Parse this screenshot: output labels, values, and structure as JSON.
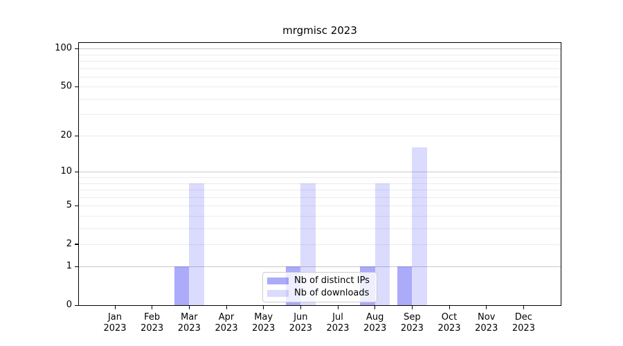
{
  "chart_data": {
    "type": "bar",
    "title": "mrgmisc 2023",
    "year_label": "2023",
    "categories": [
      "Jan",
      "Feb",
      "Mar",
      "Apr",
      "May",
      "Jun",
      "Jul",
      "Aug",
      "Sep",
      "Oct",
      "Nov",
      "Dec"
    ],
    "series": [
      {
        "name": "Nb of distinct IPs",
        "color_hex": "#a8a9f7",
        "fill": "rgba(28,28,242,0.37)",
        "values": [
          0,
          0,
          1,
          0,
          0,
          1,
          0,
          1,
          1,
          0,
          0,
          0
        ]
      },
      {
        "name": "Nb of downloads",
        "color_hex": "#d9daf9",
        "fill": "rgba(28,28,242,0.16)",
        "values": [
          0,
          0,
          8,
          0,
          0,
          8,
          0,
          8,
          16,
          0,
          0,
          0
        ]
      }
    ],
    "xlabel": "",
    "ylabel": "",
    "y_scale": "log1p",
    "y_max": 111,
    "ylim": [
      0,
      111
    ],
    "y_ticks": [
      0,
      1,
      2,
      5,
      10,
      20,
      50,
      100
    ],
    "grid_major": [
      1,
      10,
      100
    ],
    "grid_minor": [
      2,
      3,
      4,
      5,
      6,
      7,
      8,
      9,
      20,
      30,
      40,
      50,
      60,
      70,
      80,
      90
    ],
    "grid": "on",
    "legend_position": "lower center"
  },
  "colors": {
    "background": "#ffffff",
    "axis": "#000000",
    "text": "#000000",
    "grid_major": "#c9c9c9",
    "grid_minor": "#ececec",
    "legend_border": "#cccccc"
  }
}
